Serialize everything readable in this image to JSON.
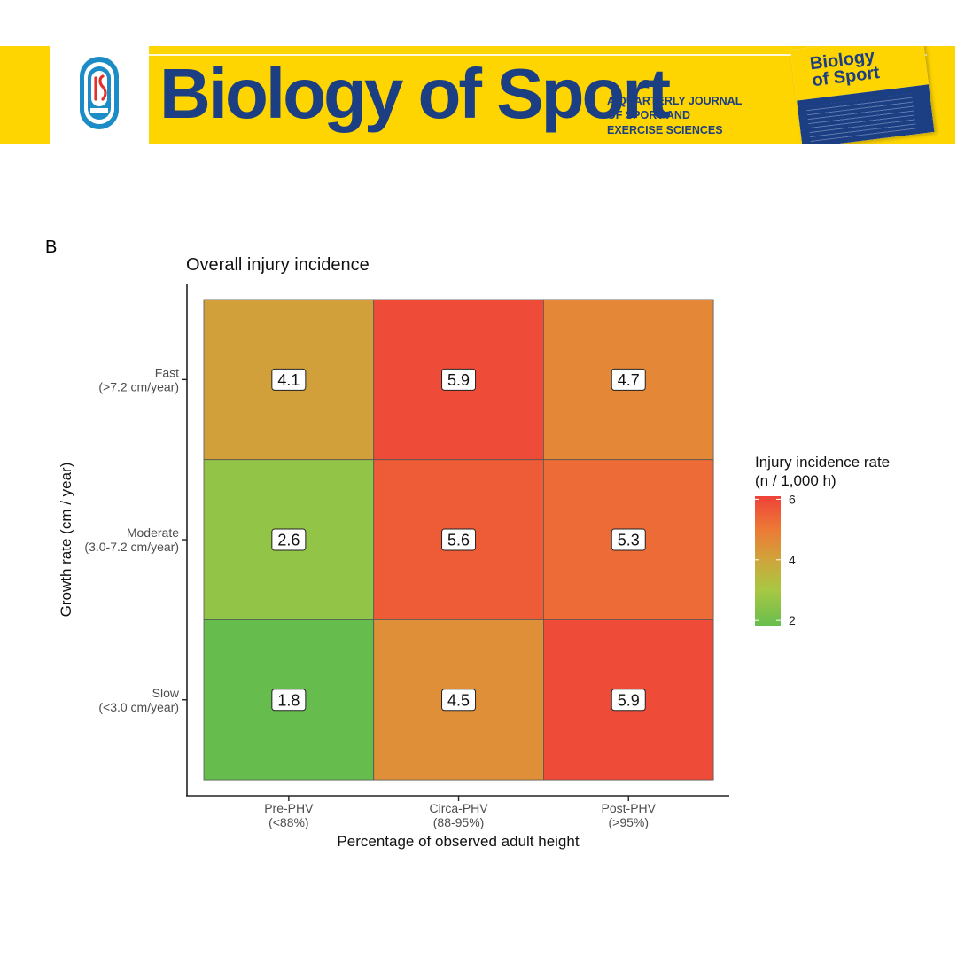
{
  "banner": {
    "title": "Biology of Sport",
    "subtitle_lines": [
      "A QUARTERLY JOURNAL",
      "OF SPORT AND",
      "EXERCISE SCIENCES"
    ],
    "cover_title_lines": [
      "Biology",
      "of Sport"
    ],
    "colors": {
      "yellow": "#fed500",
      "navy": "#1c3e82",
      "logo_blue": "#1b8cc5",
      "logo_red": "#e0312b"
    },
    "icon": "journal-logo-icon"
  },
  "panel_label": "B",
  "chart_data": {
    "type": "heatmap",
    "title": "Overall injury incidence",
    "xlabel": "Percentage of observed adult height",
    "ylabel": "Growth rate (cm / year)",
    "x_categories": [
      {
        "name": "Pre-PHV",
        "range": "(<88%)"
      },
      {
        "name": "Circa-PHV",
        "range": "(88-95%)"
      },
      {
        "name": "Post-PHV",
        "range": "(>95%)"
      }
    ],
    "y_categories": [
      {
        "name": "Fast",
        "range": "(>7.2 cm/year)"
      },
      {
        "name": "Moderate",
        "range": "(3.0-7.2 cm/year)"
      },
      {
        "name": "Slow",
        "range": "(<3.0 cm/year)"
      }
    ],
    "values": [
      [
        4.1,
        5.9,
        4.7
      ],
      [
        2.6,
        5.6,
        5.3
      ],
      [
        1.8,
        4.5,
        5.9
      ]
    ],
    "legend": {
      "title_lines": [
        "Injury incidence rate",
        "(n / 1,000 h)"
      ],
      "ticks": [
        2,
        4,
        6
      ],
      "range": [
        1.8,
        6.1
      ],
      "placement": "right"
    },
    "color_scale": [
      {
        "value": 1.8,
        "color": "#66bd4e"
      },
      {
        "value": 3.0,
        "color": "#a8c843"
      },
      {
        "value": 4.0,
        "color": "#cfa43a"
      },
      {
        "value": 5.0,
        "color": "#ed7a36"
      },
      {
        "value": 6.1,
        "color": "#ee4238"
      }
    ]
  }
}
